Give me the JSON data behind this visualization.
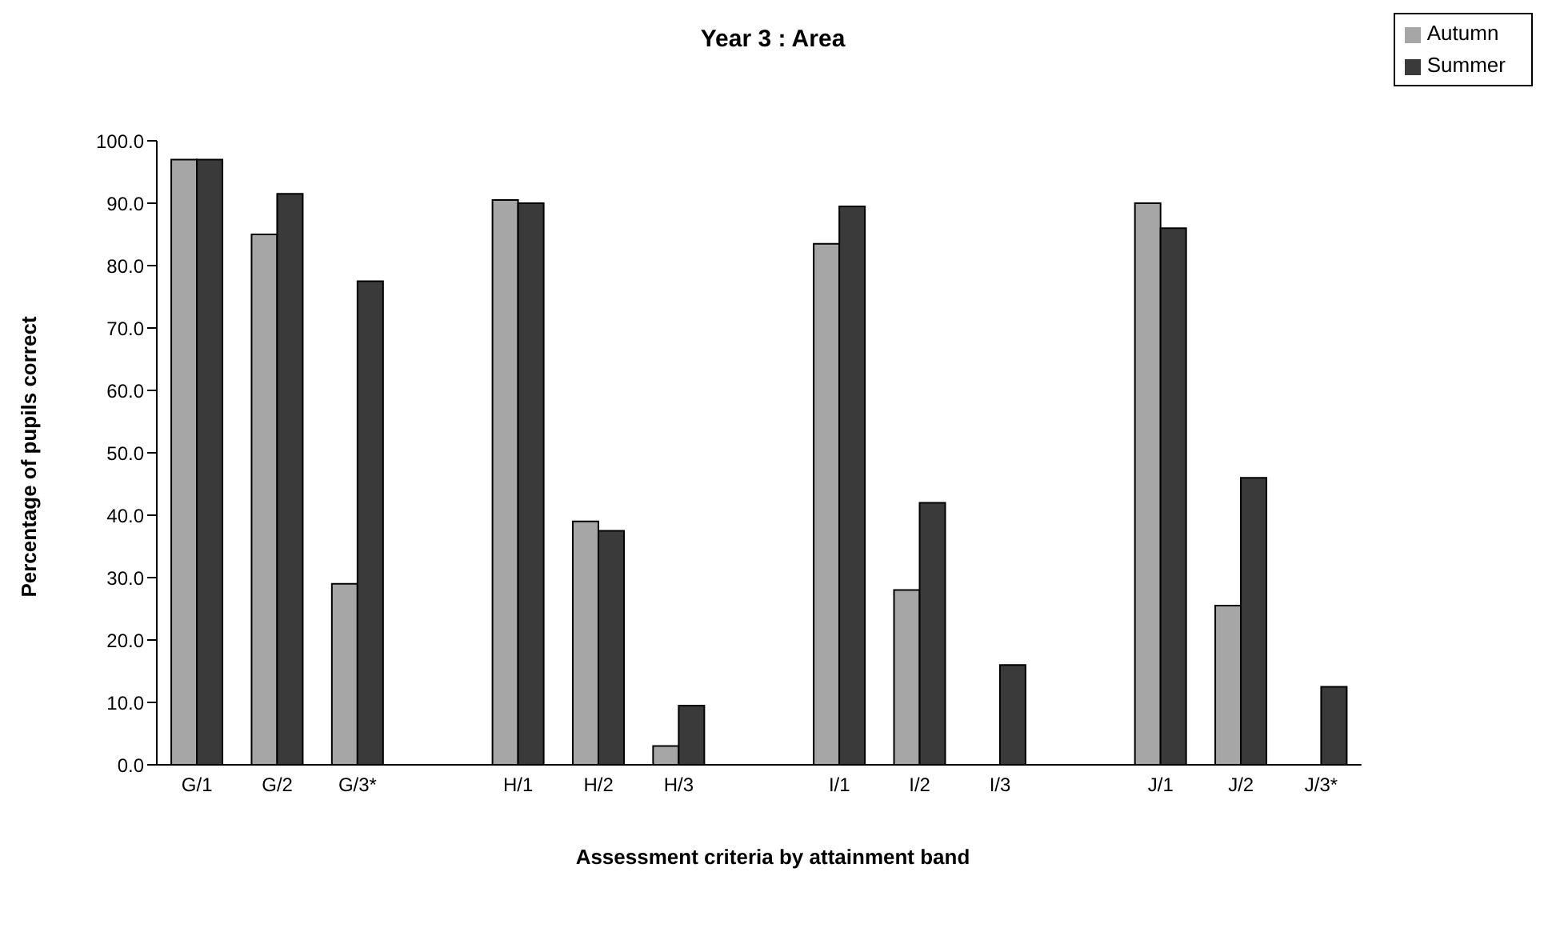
{
  "chart_data": {
    "type": "bar",
    "title": "Year 3 : Area",
    "xlabel": "Assessment criteria by attainment band",
    "ylabel": "Percentage of pupils correct",
    "categories": [
      "G/1",
      "G/2",
      "G/3*",
      null,
      "H/1",
      "H/2",
      "H/3",
      null,
      "I/1",
      "I/2",
      "I/3",
      null,
      "J/1",
      "J/2",
      "J/3*"
    ],
    "series": [
      {
        "name": "Autumn",
        "color": "#a6a6a6",
        "values": [
          97,
          85,
          29,
          null,
          90.5,
          39,
          3,
          null,
          83.5,
          28,
          null,
          null,
          90,
          25.5,
          null
        ]
      },
      {
        "name": "Summer",
        "color": "#3a3a3a",
        "values": [
          97,
          91.5,
          77.5,
          null,
          90,
          37.5,
          9.5,
          null,
          89.5,
          42,
          16,
          null,
          86,
          46,
          12.5
        ]
      }
    ],
    "ylim": [
      0,
      100
    ],
    "yticks": [
      {
        "value": 0,
        "label": "0.0"
      },
      {
        "value": 10,
        "label": "10.0"
      },
      {
        "value": 20,
        "label": "20.0"
      },
      {
        "value": 30,
        "label": "30.0"
      },
      {
        "value": 40,
        "label": "40.0"
      },
      {
        "value": 50,
        "label": "50.0"
      },
      {
        "value": 60,
        "label": "60.0"
      },
      {
        "value": 70,
        "label": "70.0"
      },
      {
        "value": 80,
        "label": "80.0"
      },
      {
        "value": 90,
        "label": "90.0"
      },
      {
        "value": 100,
        "label": "100.0"
      }
    ],
    "grid": false,
    "legend": "top right"
  }
}
